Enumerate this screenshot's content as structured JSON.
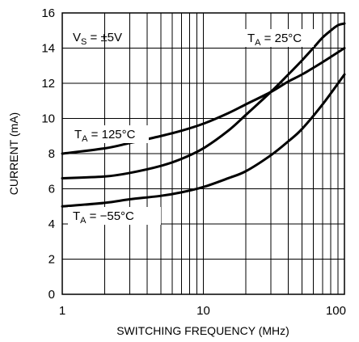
{
  "chart_data": {
    "type": "line",
    "title": "",
    "xlabel": "SWITCHING FREQUENCY (MHz)",
    "ylabel": "CURRENT (mA)",
    "x_scale": "log",
    "xlim": [
      1,
      100
    ],
    "ylim": [
      0,
      16
    ],
    "x_ticks": [
      1,
      10,
      100
    ],
    "x_tick_labels": [
      "1",
      "10",
      "100"
    ],
    "y_ticks": [
      0,
      2,
      4,
      6,
      8,
      10,
      12,
      14,
      16
    ],
    "y_tick_labels": [
      "0",
      "2",
      "4",
      "6",
      "8",
      "10",
      "12",
      "14",
      "16"
    ],
    "grid": true,
    "annotations": [
      {
        "main": "V",
        "sub": "S",
        "rest": " = ±5V"
      },
      {
        "main": "T",
        "sub": "A",
        "rest": " = 25°C"
      },
      {
        "main": "T",
        "sub": "A",
        "rest": " = 125°C"
      },
      {
        "main": "T",
        "sub": "A",
        "rest": " = −55°C"
      }
    ],
    "series": [
      {
        "name": "TA = 125°C",
        "x": [
          1,
          2,
          3,
          5,
          7,
          10,
          15,
          20,
          30,
          40,
          50,
          70,
          100
        ],
        "values": [
          8.0,
          8.3,
          8.6,
          9.0,
          9.3,
          9.7,
          10.3,
          10.8,
          11.5,
          12.1,
          12.5,
          13.2,
          14.0
        ]
      },
      {
        "name": "TA = 25°C",
        "x": [
          1,
          2,
          3,
          5,
          7,
          10,
          15,
          20,
          30,
          40,
          50,
          60,
          70,
          80,
          90,
          100
        ],
        "values": [
          6.6,
          6.7,
          6.9,
          7.3,
          7.7,
          8.3,
          9.3,
          10.2,
          11.5,
          12.5,
          13.3,
          14.0,
          14.6,
          15.0,
          15.3,
          15.4
        ]
      },
      {
        "name": "TA = −55°C",
        "x": [
          1,
          2,
          3,
          5,
          7,
          10,
          15,
          20,
          30,
          40,
          50,
          70,
          100
        ],
        "values": [
          5.0,
          5.2,
          5.4,
          5.6,
          5.8,
          6.1,
          6.6,
          7.0,
          7.9,
          8.7,
          9.4,
          10.8,
          12.5
        ]
      }
    ]
  }
}
